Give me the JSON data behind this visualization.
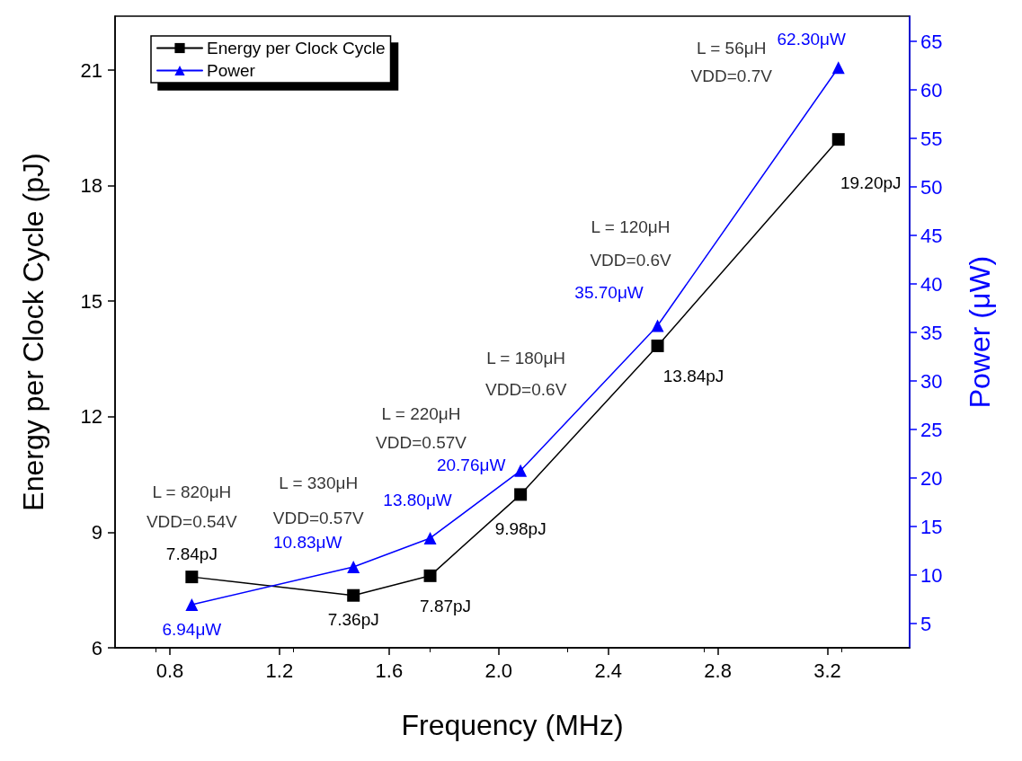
{
  "chart_data": {
    "type": "line",
    "xlabel": "Frequency (MHz)",
    "ylabel": "Energy per Clock Cycle (pJ)",
    "y2label": "Power (μW)",
    "xlim": [
      0.6,
      3.5
    ],
    "xticks": [
      0.8,
      1.2,
      1.6,
      {
        "value": 2,
        "label": "2.0"
      },
      2.4,
      2.8,
      3.2
    ],
    "ylim": [
      6,
      22.4
    ],
    "yticks": [
      6,
      9,
      12,
      15,
      18,
      21
    ],
    "y2lim": [
      2.5,
      67.6
    ],
    "y2ticks": [
      5,
      10,
      15,
      20,
      25,
      30,
      35,
      40,
      45,
      50,
      55,
      60,
      65
    ],
    "x": [
      0.88,
      1.47,
      1.75,
      2.08,
      2.58,
      3.24
    ],
    "series": [
      {
        "name": "Energy per Clock Cycle",
        "color": "#000000",
        "marker": "square",
        "values": [
          7.84,
          7.36,
          7.87,
          9.98,
          13.84,
          19.2
        ],
        "value_labels": [
          "7.84pJ",
          "7.36pJ",
          "7.87pJ",
          "9.98pJ",
          "13.84pJ",
          "19.20pJ"
        ]
      },
      {
        "name": "Power",
        "color": "#0000ff",
        "marker": "triangle",
        "axis": "y2",
        "values": [
          6.94,
          10.83,
          13.8,
          20.76,
          35.7,
          62.3
        ],
        "value_labels": [
          "6.94μW",
          "10.83μW",
          "13.80μW",
          "20.76μW",
          "35.70μW",
          "62.30μW"
        ]
      }
    ],
    "annotations": [
      "L = 820μH",
      "VDD=0.54V",
      "L = 330μH",
      "VDD=0.57V",
      "L = 220μH",
      "VDD=0.57V",
      "L = 180μH",
      "VDD=0.6V",
      "L = 120μH",
      "VDD=0.6V",
      "L = 56μH",
      "VDD=0.7V"
    ],
    "legend": "top left",
    "grid": false,
    "line_style": "solid"
  }
}
